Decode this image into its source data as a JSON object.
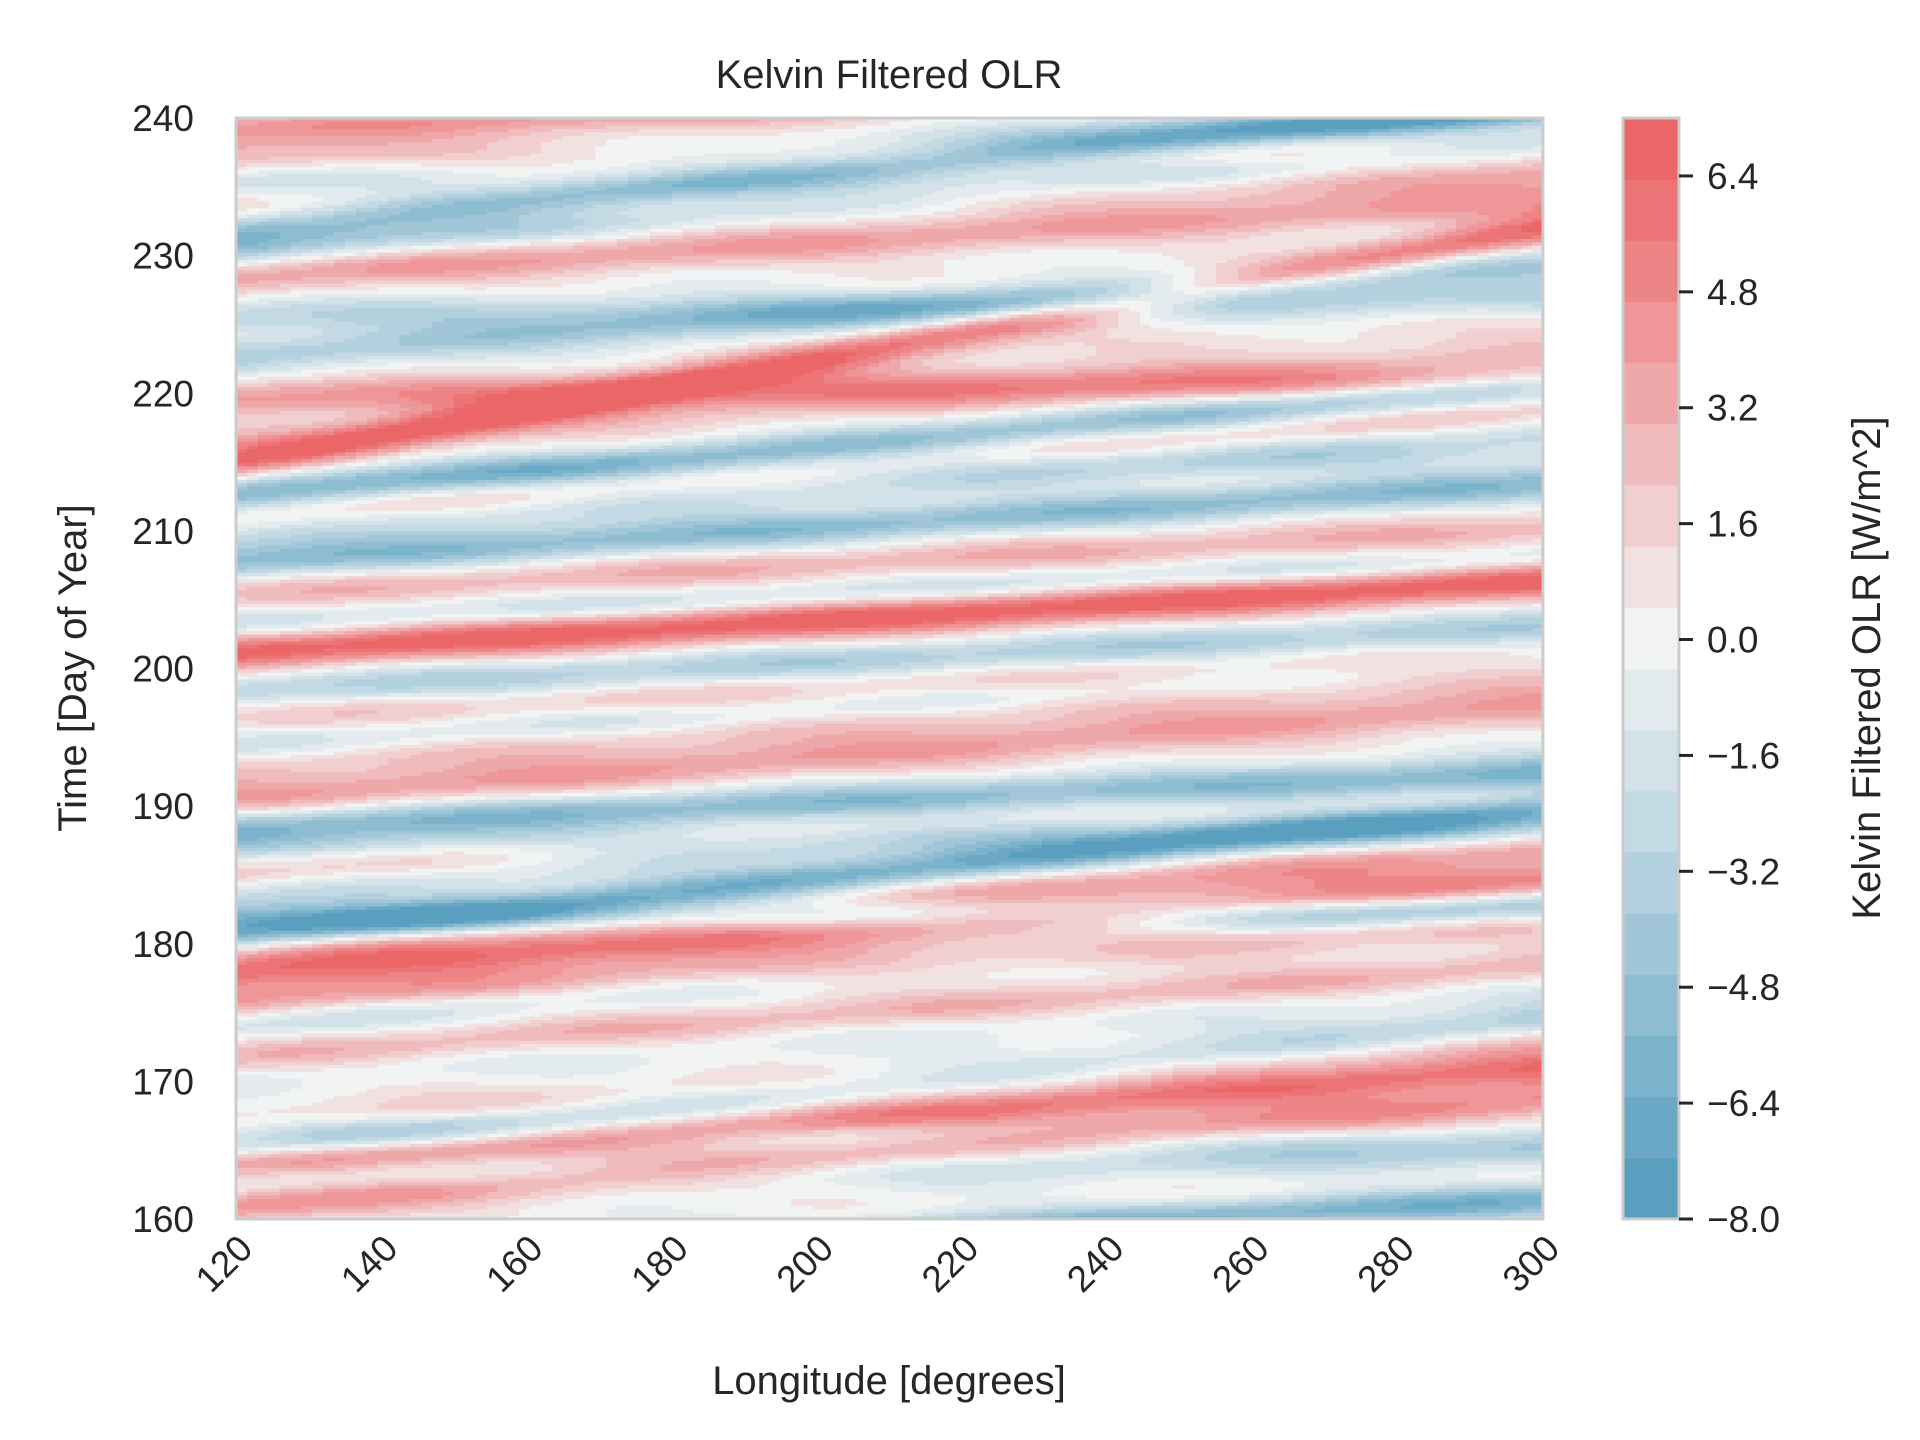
{
  "chart_data": {
    "type": "heatmap",
    "subtype": "filled-contour (Hovmoller diagram)",
    "title": "Kelvin Filtered OLR",
    "xlabel": "Longitude [degrees]",
    "ylabel": "Time [Day of Year]",
    "xlim": [
      120,
      300
    ],
    "ylim": [
      160,
      240
    ],
    "x_ticks": [
      120,
      140,
      160,
      180,
      200,
      220,
      240,
      260,
      280,
      300
    ],
    "x_tick_labels": [
      "120",
      "140",
      "160",
      "180",
      "200",
      "220",
      "240",
      "260",
      "280",
      "300"
    ],
    "y_ticks": [
      160,
      170,
      180,
      190,
      200,
      210,
      220,
      230,
      240
    ],
    "y_tick_labels": [
      "160",
      "170",
      "180",
      "190",
      "200",
      "210",
      "220",
      "230",
      "240"
    ],
    "grid": false,
    "colormap": "diverging blue-white-red",
    "colorbar": {
      "label": "Kelvin Filtered OLR [W/m^2]",
      "range": [
        -8.0,
        7.2
      ],
      "levels": [
        -8.0,
        -7.2,
        -6.4,
        -5.6,
        -4.8,
        -4.0,
        -3.2,
        -2.4,
        -1.6,
        -0.8,
        0.0,
        0.8,
        1.6,
        2.4,
        3.2,
        4.0,
        4.8,
        5.6,
        6.4,
        7.2
      ],
      "ticks": [
        -8.0,
        -6.4,
        -4.8,
        -3.2,
        -1.6,
        0.0,
        1.6,
        3.2,
        4.8,
        6.4
      ],
      "tick_labels": [
        "−8.0",
        "−6.4",
        "−4.8",
        "−3.2",
        "−1.6",
        "0.0",
        "1.6",
        "3.2",
        "4.8",
        "6.4"
      ],
      "colors": [
        "#5b9fc0",
        "#6aa8c6",
        "#7cb3cc",
        "#8ebdd2",
        "#a0c6d8",
        "#b2d0de",
        "#c3d9e3",
        "#d3e2e9",
        "#e3ebee",
        "#f2f3f3",
        "#f1e1e1",
        "#f1cecf",
        "#f0bbbc",
        "#efa8aa",
        "#ee9698",
        "#ed8587",
        "#ec7476",
        "#eb6667"
      ]
    },
    "wave_bands": [
      {
        "day_at_120": 161.0,
        "day_at_300": 168.8,
        "amplitude": 4.0
      },
      {
        "day_at_120": 162.8,
        "day_at_300": 164.8,
        "amplitude": -2.4
      },
      {
        "day_at_120": 164.0,
        "day_at_300": 171.0,
        "amplitude": 5.4
      },
      {
        "day_at_120": 166.5,
        "day_at_300": 165.5,
        "amplitude": -2.0
      },
      {
        "day_at_120": 165.0,
        "day_at_300": 174.5,
        "amplitude": -3.5
      },
      {
        "day_at_120": 156.5,
        "day_at_300": 161.5,
        "amplitude": -6.0
      },
      {
        "day_at_120": 167.2,
        "day_at_300": 173.0,
        "amplitude": 1.5
      },
      {
        "day_at_120": 170.5,
        "day_at_300": 176.8,
        "amplitude": -1.5
      },
      {
        "day_at_120": 171.8,
        "day_at_300": 178.5,
        "amplitude": 2.5
      },
      {
        "day_at_120": 174.2,
        "day_at_300": 183.0,
        "amplitude": -2.5
      },
      {
        "day_at_120": 175.8,
        "day_at_300": 181.8,
        "amplitude": 3.5
      },
      {
        "day_at_120": 178.0,
        "day_at_300": 184.5,
        "amplitude": 5.5
      },
      {
        "day_at_120": 179.6,
        "day_at_300": 186.8,
        "amplitude": 3.0
      },
      {
        "day_at_120": 181.8,
        "day_at_300": 182.5,
        "amplitude": -4.5
      },
      {
        "day_at_120": 183.5,
        "day_at_300": 192.0,
        "amplitude": -2.0
      },
      {
        "day_at_120": 185.3,
        "day_at_300": 191.0,
        "amplitude": 2.0
      },
      {
        "day_at_120": 187.0,
        "day_at_300": 188.5,
        "amplitude": -2.8
      },
      {
        "day_at_120": 188.5,
        "day_at_300": 192.5,
        "amplitude": -5.0
      },
      {
        "day_at_120": 180.5,
        "day_at_300": 190.0,
        "amplitude": -6.2
      },
      {
        "day_at_120": 190.6,
        "day_at_300": 197.5,
        "amplitude": 3.0
      },
      {
        "day_at_120": 192.8,
        "day_at_300": 199.5,
        "amplitude": 2.2
      },
      {
        "day_at_120": 194.5,
        "day_at_300": 200.5,
        "amplitude": -2.5
      },
      {
        "day_at_120": 196.5,
        "day_at_300": 201.0,
        "amplitude": 1.8
      },
      {
        "day_at_120": 198.5,
        "day_at_300": 203.0,
        "amplitude": -3.5
      },
      {
        "day_at_120": 201.3,
        "day_at_300": 206.5,
        "amplitude": 6.5
      },
      {
        "day_at_120": 203.5,
        "day_at_300": 208.0,
        "amplitude": -2.2
      },
      {
        "day_at_120": 205.5,
        "day_at_300": 210.0,
        "amplitude": 2.2
      },
      {
        "day_at_120": 207.8,
        "day_at_300": 213.5,
        "amplitude": -5.0
      },
      {
        "day_at_120": 209.5,
        "day_at_300": 217.0,
        "amplitude": -2.5
      },
      {
        "day_at_120": 211.5,
        "day_at_300": 219.0,
        "amplitude": 2.8
      },
      {
        "day_at_120": 214.0,
        "day_at_300": 215.5,
        "amplitude": -1.5
      },
      {
        "day_at_120": 216.5,
        "day_at_300": 223.0,
        "amplitude": 2.0
      },
      {
        "day_at_120": 219.8,
        "day_at_300": 221.0,
        "amplitude": 3.5
      },
      {
        "day_at_120": 212.5,
        "day_at_300": 220.5,
        "amplitude": -5.8
      },
      {
        "day_at_120": 222.8,
        "day_at_300": 229.5,
        "amplitude": -4.0
      },
      {
        "day_at_120": 215.0,
        "day_at_300": 232.0,
        "amplitude": 5.5
      },
      {
        "day_at_120": 225.5,
        "day_at_300": 227.0,
        "amplitude": -3.0
      },
      {
        "day_at_120": 228.5,
        "day_at_300": 234.0,
        "amplitude": 3.0
      },
      {
        "day_at_120": 230.5,
        "day_at_300": 238.0,
        "amplitude": -3.5
      },
      {
        "day_at_120": 232.5,
        "day_at_300": 236.0,
        "amplitude": 2.5
      },
      {
        "day_at_120": 235.5,
        "day_at_300": 240.5,
        "amplitude": -2.2
      },
      {
        "day_at_120": 237.0,
        "day_at_300": 237.5,
        "amplitude": 2.5
      },
      {
        "day_at_120": 239.2,
        "day_at_300": 243.5,
        "amplitude": 3.5
      },
      {
        "day_at_120": 232.0,
        "day_at_300": 241.0,
        "amplitude": -6.5
      }
    ]
  }
}
